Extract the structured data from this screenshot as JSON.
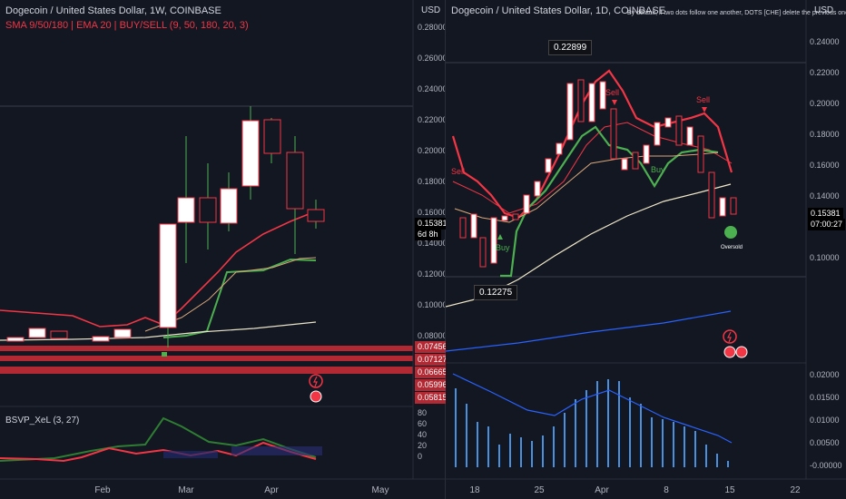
{
  "left": {
    "title": "Dogecoin / United States Dollar, 1W, COINBASE",
    "indicators": "SMA 9/50/180 | EMA 20 | BUY/SELL (9, 50, 180, 20, 3)",
    "currency": "USD",
    "price_ticks": [
      "0.28000",
      "0.26000",
      "0.24000",
      "0.22000",
      "0.20000",
      "0.18000",
      "0.16000",
      "0.14000",
      "0.12000",
      "0.10000",
      "0.08000"
    ],
    "current_price": "0.15381",
    "countdown": "6d 8h",
    "level_labels": [
      "0.07456",
      "0.07127",
      "0.06665",
      "0.05996",
      "0.05815"
    ],
    "oscillator_label": "BSVP_XeL (3, 27)",
    "osc_ticks": [
      "80",
      "60",
      "40",
      "20",
      "0"
    ],
    "x_ticks": [
      "Feb",
      "Mar",
      "Apr",
      "May"
    ],
    "colors": {
      "level": "#b22833",
      "price_badge": "#000000"
    }
  },
  "right": {
    "title": "Dogecoin / United States Dollar, 1D, COINBASE",
    "note": "By default, if two dots follow one another, DOTS [CHE] delete the previous one",
    "currency": "USD",
    "price_ticks": [
      "0.24000",
      "0.22000",
      "0.20000",
      "0.18000",
      "0.16000",
      "0.14000",
      "0.12000",
      "0.10000"
    ],
    "current_price": "0.15381",
    "countdown": "07:00:27",
    "high_label": "0.22899",
    "low_label": "0.12275",
    "signals": {
      "sell_1": "Sell",
      "sell_2": "Sell",
      "sell_3": "Sell",
      "buy_1": "Buy",
      "buy_2": "Buy",
      "oversold": "Oversold"
    },
    "vol_ticks": [
      "0.02000",
      "0.01500",
      "0.01000",
      "0.00500",
      "-0.00000"
    ],
    "x_ticks": [
      "18",
      "25",
      "Apr",
      "8",
      "15",
      "22"
    ]
  }
}
